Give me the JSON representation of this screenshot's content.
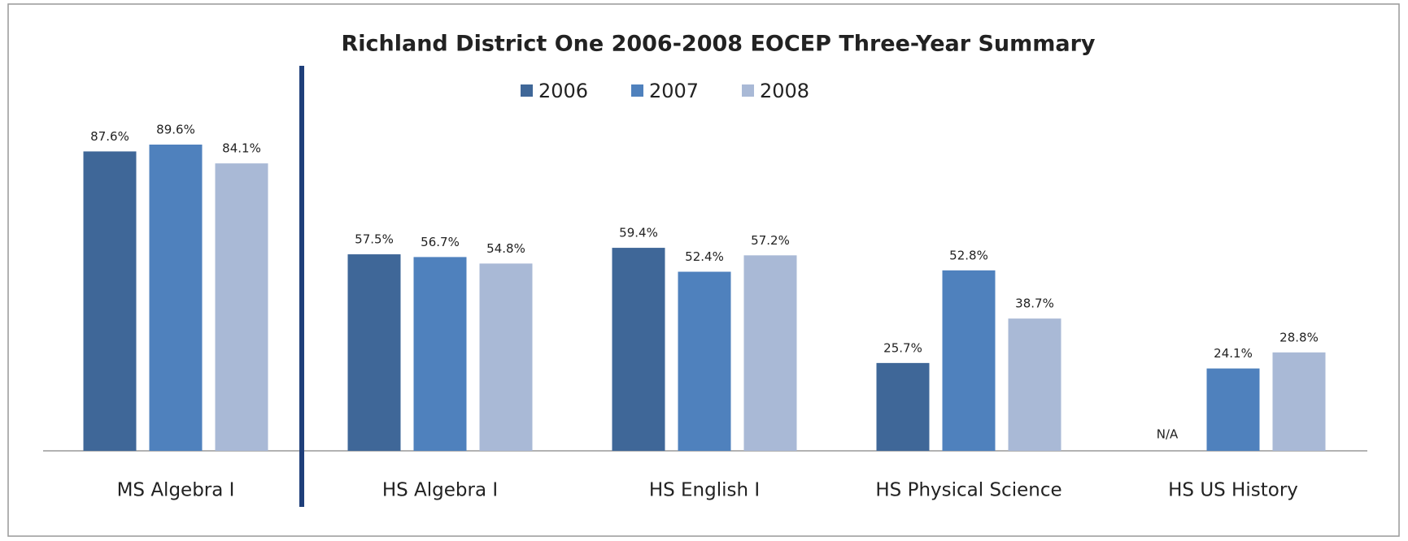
{
  "chart_data": {
    "type": "bar",
    "title": "Richland District One 2006-2008 EOCEP Three-Year Summary",
    "categories": [
      "MS Algebra I",
      "HS Algebra I",
      "HS English  I",
      "HS Physical Science",
      "HS US History"
    ],
    "series": [
      {
        "name": "2006",
        "color": "#3f6798",
        "values": [
          87.6,
          57.5,
          59.4,
          25.7,
          null
        ],
        "value_labels": [
          "87.6%",
          "57.5%",
          "59.4%",
          "25.7%",
          "N/A"
        ]
      },
      {
        "name": "2007",
        "color": "#4f81bd",
        "values": [
          89.6,
          56.7,
          52.4,
          52.8,
          24.1
        ],
        "value_labels": [
          "89.6%",
          "56.7%",
          "52.4%",
          "52.8%",
          "24.1%"
        ]
      },
      {
        "name": "2008",
        "color": "#a9b9d6",
        "values": [
          84.1,
          54.8,
          57.2,
          38.7,
          28.8
        ],
        "value_labels": [
          "84.1%",
          "54.8%",
          "57.2%",
          "38.7%",
          "28.8%"
        ]
      }
    ],
    "legend": "top"
  }
}
